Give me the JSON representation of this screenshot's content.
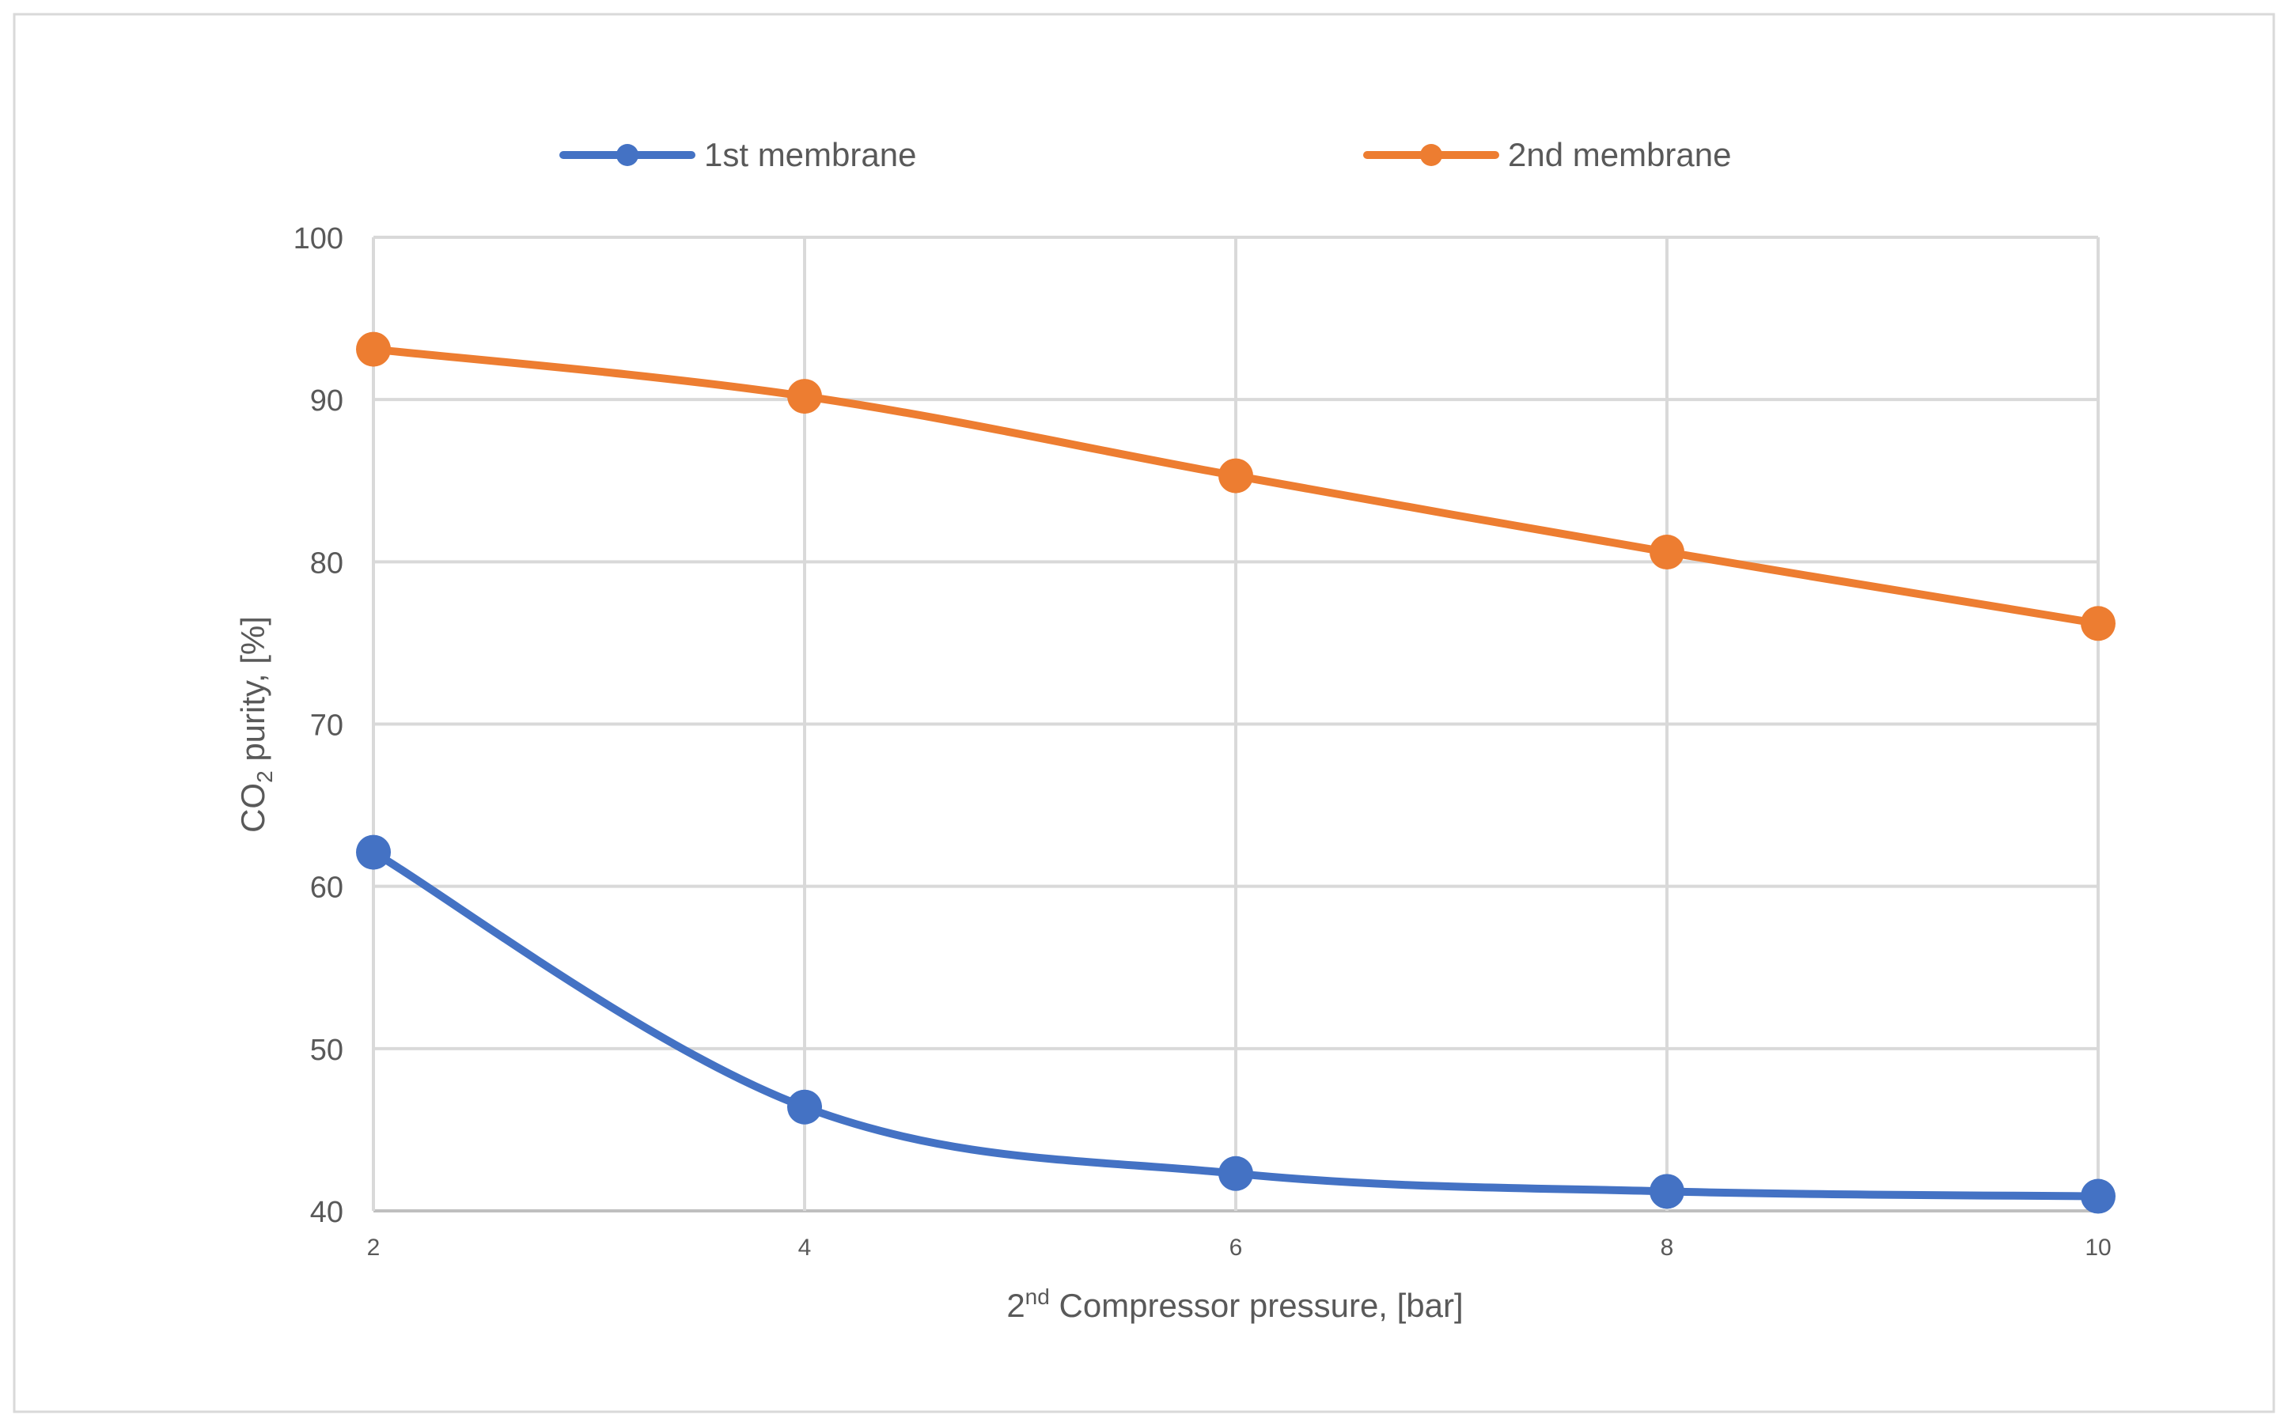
{
  "chart_data": {
    "type": "line",
    "title": "",
    "x": [
      2,
      4,
      6,
      8,
      10
    ],
    "x_ticks": [
      "2",
      "4",
      "6",
      "8",
      "10"
    ],
    "y_ticks": [
      "40",
      "50",
      "60",
      "70",
      "80",
      "90",
      "100"
    ],
    "xlim": [
      2,
      10
    ],
    "ylim": [
      40,
      100
    ],
    "grid": true,
    "legend_position": "top",
    "xlabel": {
      "prefix": "2",
      "sup": "nd",
      "rest": " Compressor pressure, [bar]"
    },
    "ylabel": {
      "prefix": "CO",
      "sub": "2",
      "rest": " purity, [%]"
    },
    "series": [
      {
        "name": "1st membrane",
        "color": "#4472C4",
        "values": [
          62.1,
          46.4,
          42.3,
          41.2,
          40.9
        ]
      },
      {
        "name": "2nd membrane",
        "color": "#ED7D31",
        "values": [
          93.1,
          90.2,
          85.3,
          80.6,
          76.2
        ]
      }
    ]
  }
}
